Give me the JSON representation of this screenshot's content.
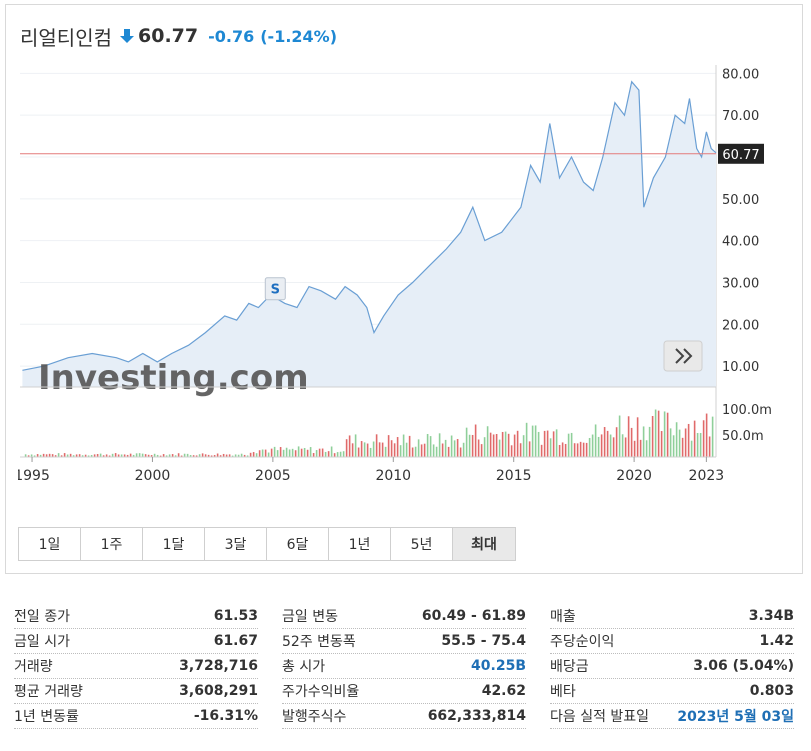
{
  "header": {
    "name": "리얼티인컴",
    "price": "60.77",
    "change": "-0.76",
    "change_pct": "(-1.24%)",
    "change_color": "#1e88d3"
  },
  "chart_data": {
    "type": "area",
    "y_axis": {
      "ticks": [
        "10.00",
        "20.00",
        "30.00",
        "40.00",
        "50.00",
        "60.00",
        "70.00",
        "80.00"
      ],
      "min": 5,
      "max": 82
    },
    "current_price_label": "60.77",
    "current_price": 60.77,
    "x_axis": {
      "ticks": [
        "1995",
        "2000",
        "2005",
        "2010",
        "2015",
        "2020",
        "2023"
      ],
      "min": 1994.5,
      "max": 2023.4
    },
    "series": [
      {
        "x": [
          1994.6,
          1995.5,
          1996.5,
          1997.5,
          1998.5,
          1999.0,
          1999.6,
          2000.2,
          2000.8,
          2001.5,
          2002.2,
          2003.0,
          2003.5,
          2004.0,
          2004.4,
          2004.9,
          2005.5,
          2006.0,
          2006.5,
          2007.0,
          2007.6,
          2008.0,
          2008.5,
          2008.9,
          2009.2,
          2009.6,
          2010.2,
          2010.8,
          2011.5,
          2012.2,
          2012.8,
          2013.3,
          2013.8,
          2014.5,
          2015.3,
          2015.7,
          2016.1,
          2016.5,
          2016.9,
          2017.4,
          2017.9,
          2018.3,
          2018.7,
          2019.2,
          2019.6,
          2019.9,
          2020.2,
          2020.4,
          2020.8,
          2021.3,
          2021.7,
          2022.1,
          2022.3,
          2022.6,
          2022.8,
          2023.0,
          2023.2,
          2023.4
        ],
        "y": [
          9,
          10,
          12,
          13,
          12,
          11,
          13,
          11,
          13,
          15,
          18,
          22,
          21,
          25,
          24,
          27,
          25,
          24,
          29,
          28,
          26,
          29,
          27,
          24,
          18,
          22,
          27,
          30,
          34,
          38,
          42,
          48,
          40,
          42,
          48,
          58,
          54,
          68,
          55,
          60,
          54,
          52,
          60,
          73,
          70,
          78,
          76,
          48,
          55,
          60,
          70,
          68,
          74,
          62,
          60,
          66,
          62,
          61
        ],
        "name": ""
      }
    ],
    "volume_axis": {
      "ticks": [
        "100.0m",
        "50.0m"
      ]
    },
    "watermark": "Investing.com",
    "event_marker": "S",
    "grid": true
  },
  "timeframes": [
    "1일",
    "1주",
    "1달",
    "3달",
    "6달",
    "1년",
    "5년",
    "최대"
  ],
  "active_timeframe": "최대",
  "stats": {
    "col1": [
      {
        "label": "전일 종가",
        "value": "61.53"
      },
      {
        "label": "금일 시가",
        "value": "61.67"
      },
      {
        "label": "거래량",
        "value": "3,728,716"
      },
      {
        "label": "평균 거래량",
        "value": "3,608,291"
      },
      {
        "label": "1년 변동률",
        "value": "-16.31%"
      }
    ],
    "col2": [
      {
        "label": "금일 변동",
        "value": "60.49 - 61.89"
      },
      {
        "label": "52주 변동폭",
        "value": "55.5 - 75.4"
      },
      {
        "label": "총 시가",
        "value": "40.25B"
      },
      {
        "label": "주가수익비율",
        "value": "42.62"
      },
      {
        "label": "발행주식수",
        "value": "662,333,814"
      }
    ],
    "col3": [
      {
        "label": "매출",
        "value": "3.34B"
      },
      {
        "label": "주당순이익",
        "value": "1.42"
      },
      {
        "label": "배당금",
        "value": "3.06 (5.04%)"
      },
      {
        "label": "베타",
        "value": "0.803"
      },
      {
        "label": "다음 실적 발표일",
        "value": "2023년 5월 03일"
      }
    ]
  },
  "colors": {
    "line": "#6a9fd4",
    "fill": "#e6eef7",
    "price_line": "#e47a7a",
    "vol_up": "#8fcf9a",
    "vol_down": "#e06a6a",
    "link": "#1f6fb5"
  }
}
